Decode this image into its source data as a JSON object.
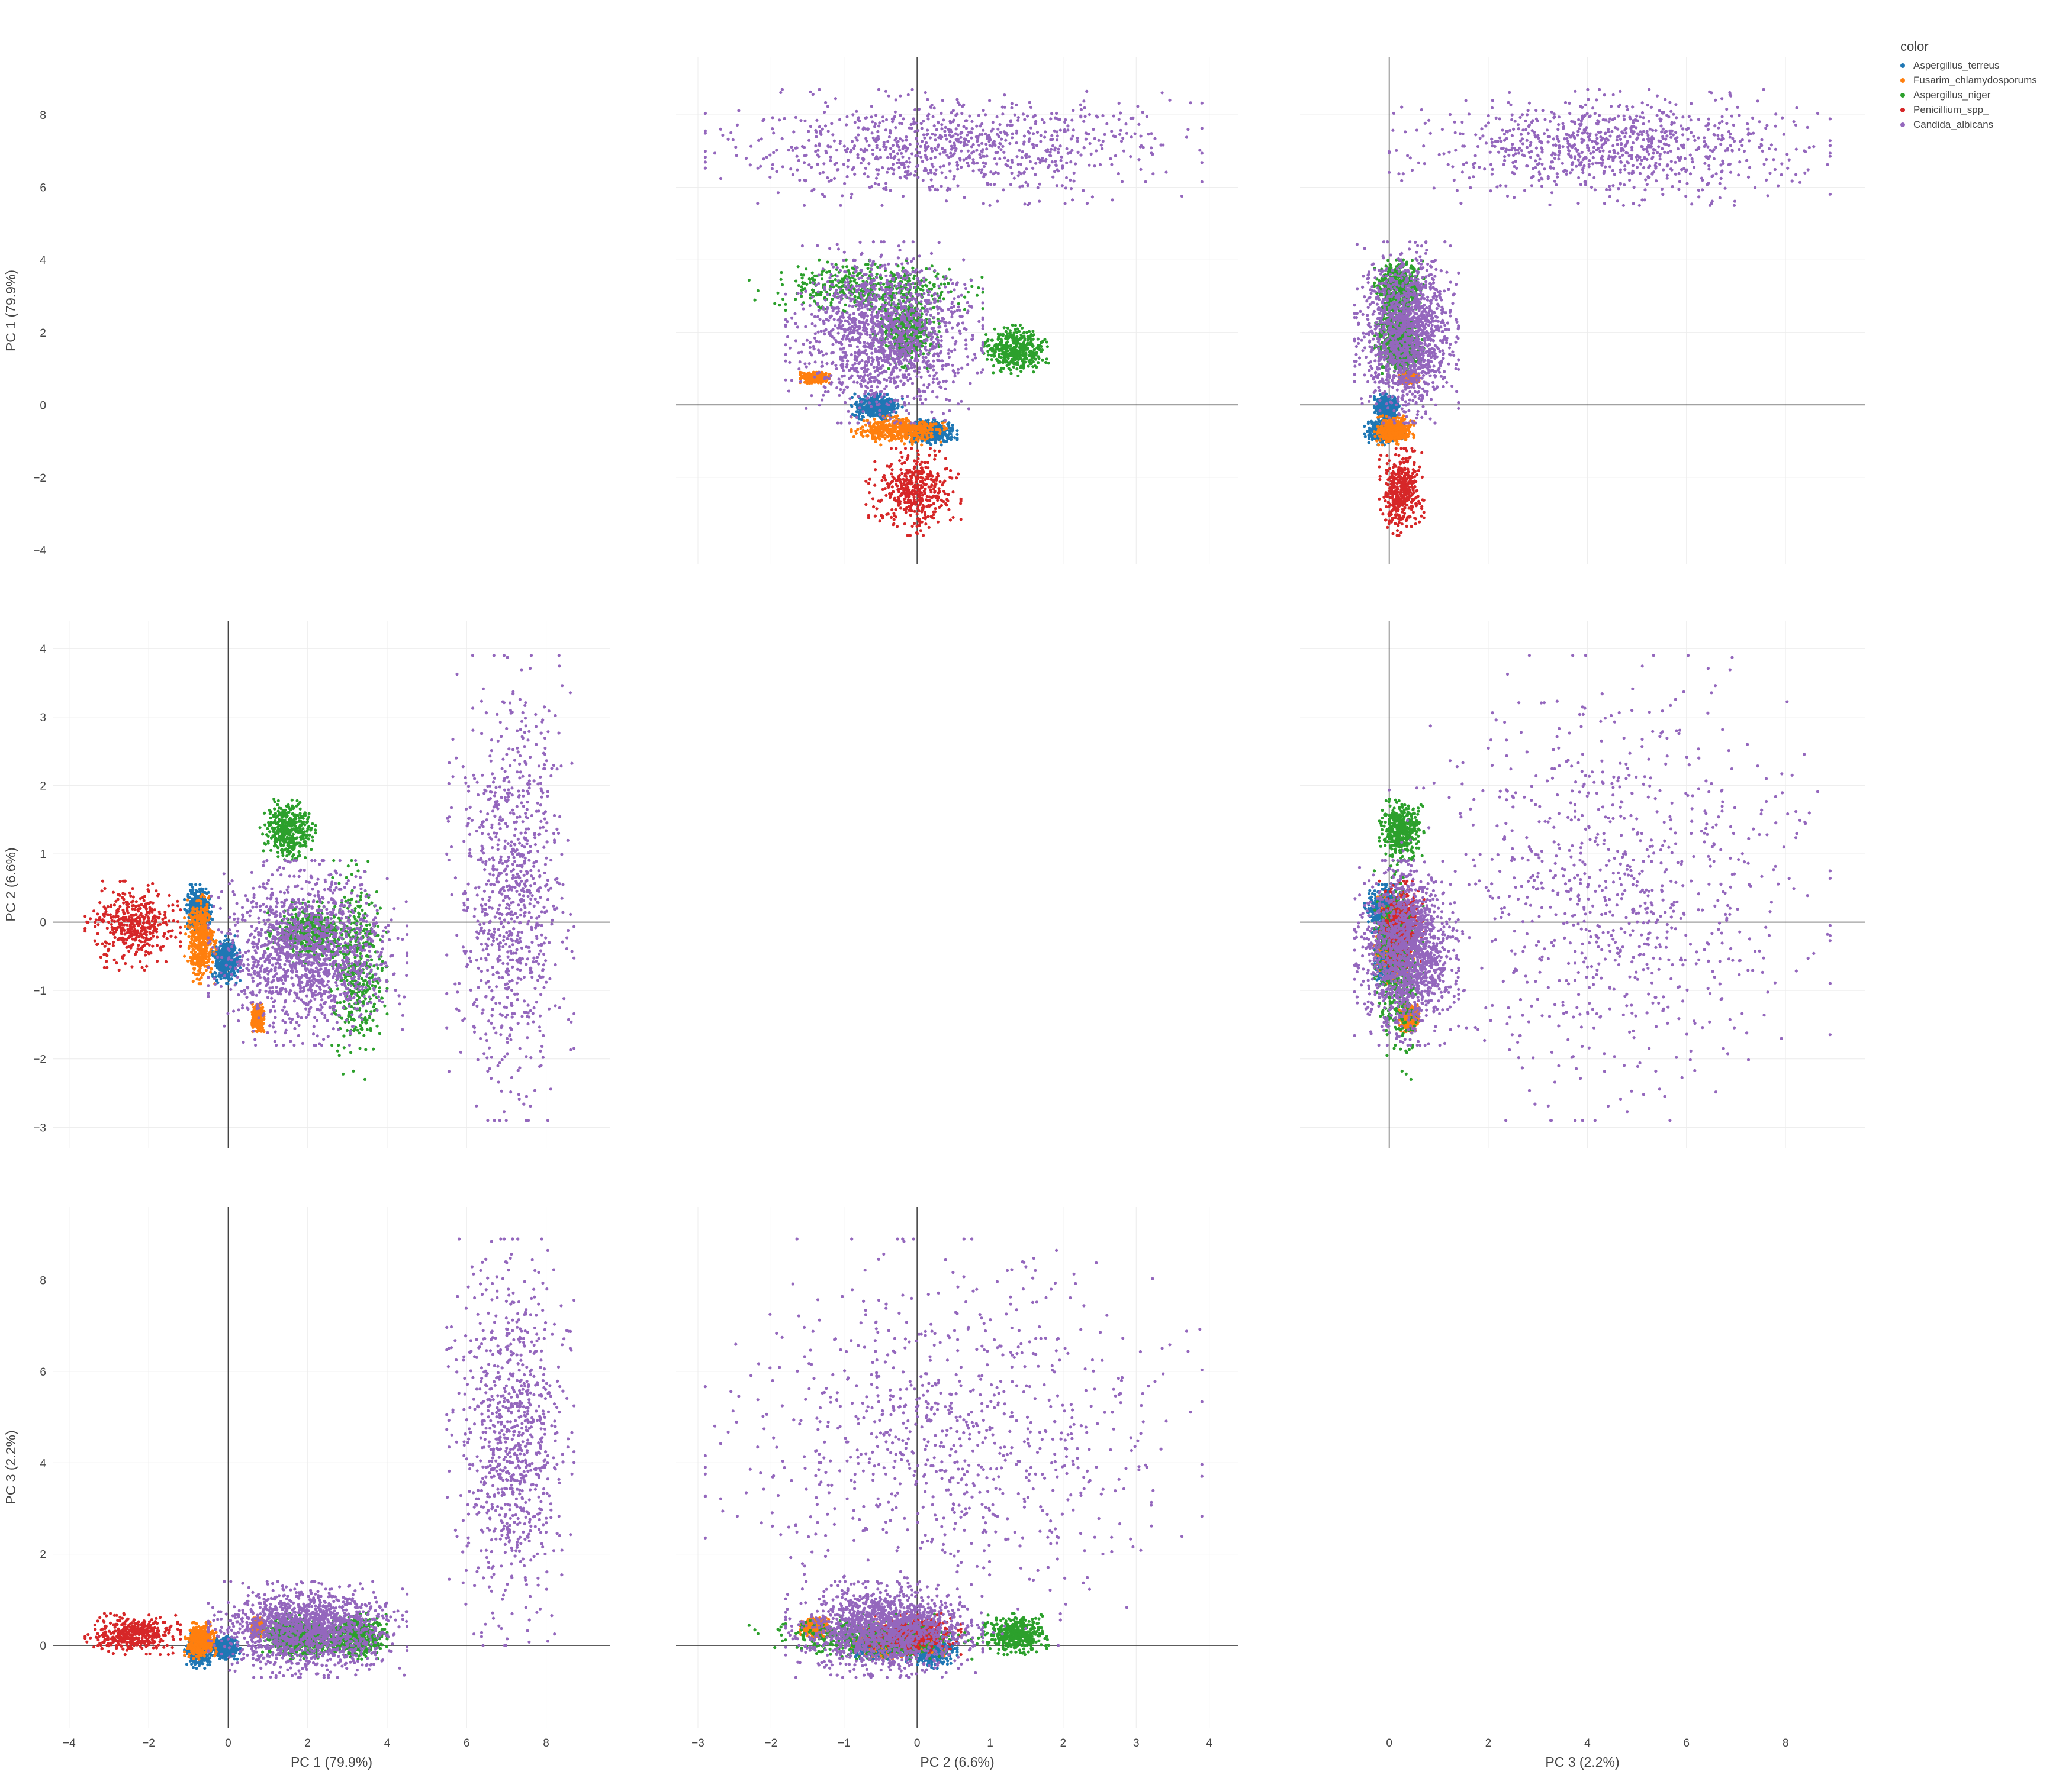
{
  "chart_data": {
    "type": "scatter",
    "subtype": "scatter-matrix",
    "axes": {
      "PC1": {
        "label": "PC 1 (79.9%)",
        "range": [
          -4.4,
          9.6
        ],
        "ticks": [
          -4,
          -2,
          0,
          2,
          4,
          6,
          8
        ]
      },
      "PC2": {
        "label": "PC 2 (6.6%)",
        "range": [
          -3.3,
          4.4
        ],
        "ticks": [
          -3,
          -2,
          -1,
          0,
          1,
          2,
          3,
          4
        ]
      },
      "PC3": {
        "label": "PC 3 (2.2%)",
        "range": [
          -1.8,
          9.6
        ],
        "ticks": [
          0,
          2,
          4,
          6,
          8
        ]
      }
    },
    "grid": true,
    "zero_lines": true,
    "legend": {
      "title": "color",
      "placement": "top-right"
    },
    "series": [
      {
        "name": "Aspergillus_terreus",
        "color": "#1f77b4",
        "clusters": [
          {
            "pc1": [
              -1.1,
              -0.4
            ],
            "pc2": [
              -0.15,
              0.55
            ],
            "pc3": [
              -0.5,
              0.3
            ]
          },
          {
            "pc1": [
              -0.4,
              0.3
            ],
            "pc2": [
              -0.9,
              -0.2
            ],
            "pc3": [
              -0.3,
              0.2
            ]
          }
        ]
      },
      {
        "name": "Fusarim_chlamydosporums",
        "color": "#ff7f0e",
        "clusters": [
          {
            "pc1": [
              -1.1,
              -0.3
            ],
            "pc2": [
              -0.9,
              0.4
            ],
            "pc3": [
              -0.3,
              0.5
            ]
          },
          {
            "pc1": [
              0.6,
              0.9
            ],
            "pc2": [
              -1.6,
              -1.2
            ],
            "pc3": [
              0.2,
              0.6
            ]
          }
        ]
      },
      {
        "name": "Aspergillus_niger",
        "color": "#2ca02c",
        "clusters": [
          {
            "pc1": [
              0.8,
              2.2
            ],
            "pc2": [
              0.9,
              1.8
            ],
            "pc3": [
              -0.2,
              0.7
            ]
          },
          {
            "pc1": [
              1.0,
              3.2
            ],
            "pc2": [
              -0.6,
              0.3
            ],
            "pc3": [
              -0.3,
              0.6
            ]
          },
          {
            "pc1": [
              2.5,
              4.0
            ],
            "pc2": [
              -2.3,
              0.9
            ],
            "pc3": [
              -0.3,
              0.7
            ]
          }
        ]
      },
      {
        "name": "Penicillium_spp_",
        "color": "#d62728",
        "clusters": [
          {
            "pc1": [
              -3.6,
              -1.2
            ],
            "pc2": [
              -0.7,
              0.6
            ],
            "pc3": [
              -0.2,
              0.7
            ]
          }
        ]
      },
      {
        "name": "Candida_albicans",
        "color": "#9467bd",
        "clusters": [
          {
            "pc1": [
              -0.5,
              4.5
            ],
            "pc2": [
              -1.8,
              0.9
            ],
            "pc3": [
              -0.7,
              1.4
            ]
          },
          {
            "pc1": [
              5.5,
              8.7
            ],
            "pc2": [
              -2.9,
              3.9
            ],
            "pc3": [
              0.0,
              8.9
            ]
          }
        ]
      }
    ]
  }
}
